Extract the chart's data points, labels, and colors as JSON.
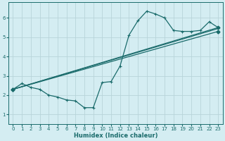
{
  "title": "",
  "xlabel": "Humidex (Indice chaleur)",
  "background_color": "#d4edf2",
  "grid_color": "#b8d4da",
  "line_color": "#1a6b6b",
  "xlim": [
    -0.5,
    23.5
  ],
  "ylim": [
    0.5,
    6.8
  ],
  "yticks": [
    1,
    2,
    3,
    4,
    5,
    6
  ],
  "xticks": [
    0,
    1,
    2,
    3,
    4,
    5,
    6,
    7,
    8,
    9,
    10,
    11,
    12,
    13,
    14,
    15,
    16,
    17,
    18,
    19,
    20,
    21,
    22,
    23
  ],
  "line1_x": [
    0,
    1,
    2,
    3,
    4,
    5,
    6,
    7,
    8,
    9,
    10,
    11,
    12,
    13,
    14,
    15,
    16,
    17,
    18,
    19,
    20,
    21,
    22,
    23
  ],
  "line1_y": [
    2.3,
    2.6,
    2.4,
    2.3,
    2.0,
    1.9,
    1.75,
    1.7,
    1.35,
    1.35,
    2.65,
    2.7,
    3.5,
    5.1,
    5.85,
    6.35,
    6.2,
    6.0,
    5.35,
    5.3,
    5.3,
    5.35,
    5.8,
    5.5
  ],
  "line2_x": [
    0,
    23
  ],
  "line2_y": [
    2.3,
    5.5
  ],
  "line3_x": [
    0,
    23
  ],
  "line3_y": [
    2.3,
    5.3
  ],
  "line4_x": [
    0,
    23
  ],
  "line4_y": [
    2.3,
    5.45
  ]
}
